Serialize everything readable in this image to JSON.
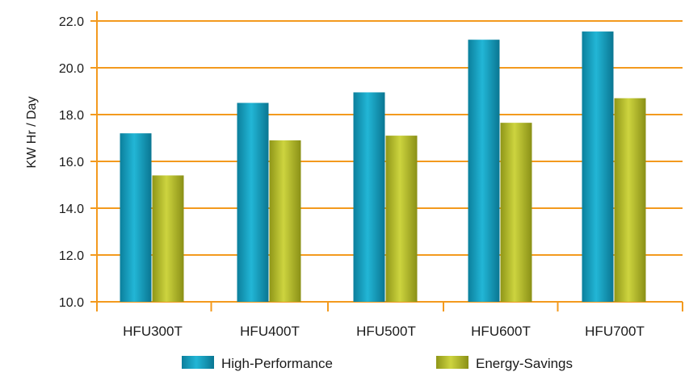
{
  "chart_data": {
    "type": "bar",
    "title": "",
    "xlabel": "",
    "ylabel": "KW Hr / Day",
    "ylim": [
      10.0,
      22.0
    ],
    "yticks": [
      "10.0",
      "12.0",
      "14.0",
      "16.0",
      "18.0",
      "20.0",
      "22.0"
    ],
    "categories": [
      "HFU300T",
      "HFU400T",
      "HFU500T",
      "HFU600T",
      "HFU700T"
    ],
    "series": [
      {
        "name": "High-Performance",
        "values": [
          17.2,
          18.5,
          18.95,
          21.2,
          21.55
        ],
        "color": "#1a9fbf"
      },
      {
        "name": "Energy-Savings",
        "values": [
          15.4,
          16.9,
          17.1,
          17.65,
          18.7
        ],
        "color": "#b2ba2a"
      }
    ],
    "grid": true,
    "gridColor": "#f39a1e",
    "axisColor": "#f39a1e",
    "legend": "bottom-center"
  }
}
